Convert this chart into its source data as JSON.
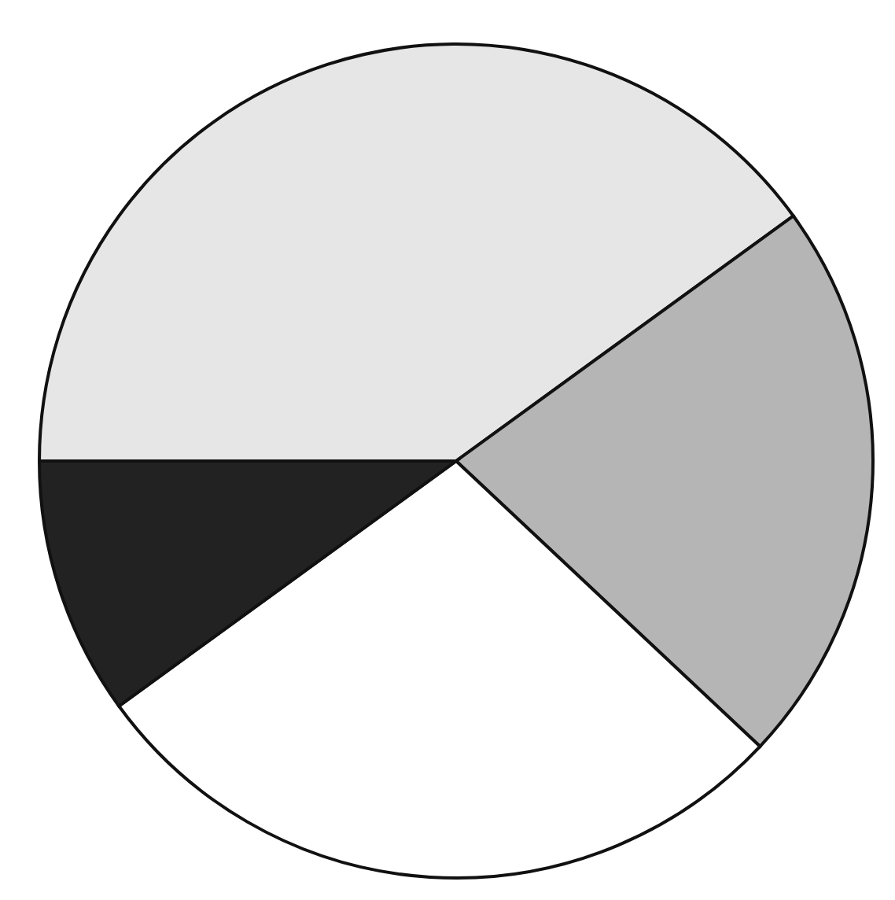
{
  "chart_data": {
    "type": "pie",
    "categories": [
      null,
      null,
      null,
      null
    ],
    "values": [
      40,
      22,
      28,
      10
    ],
    "colors": [
      "#e6e6e6",
      "#b5b5b5",
      "#ffffff",
      "#222222"
    ]
  }
}
